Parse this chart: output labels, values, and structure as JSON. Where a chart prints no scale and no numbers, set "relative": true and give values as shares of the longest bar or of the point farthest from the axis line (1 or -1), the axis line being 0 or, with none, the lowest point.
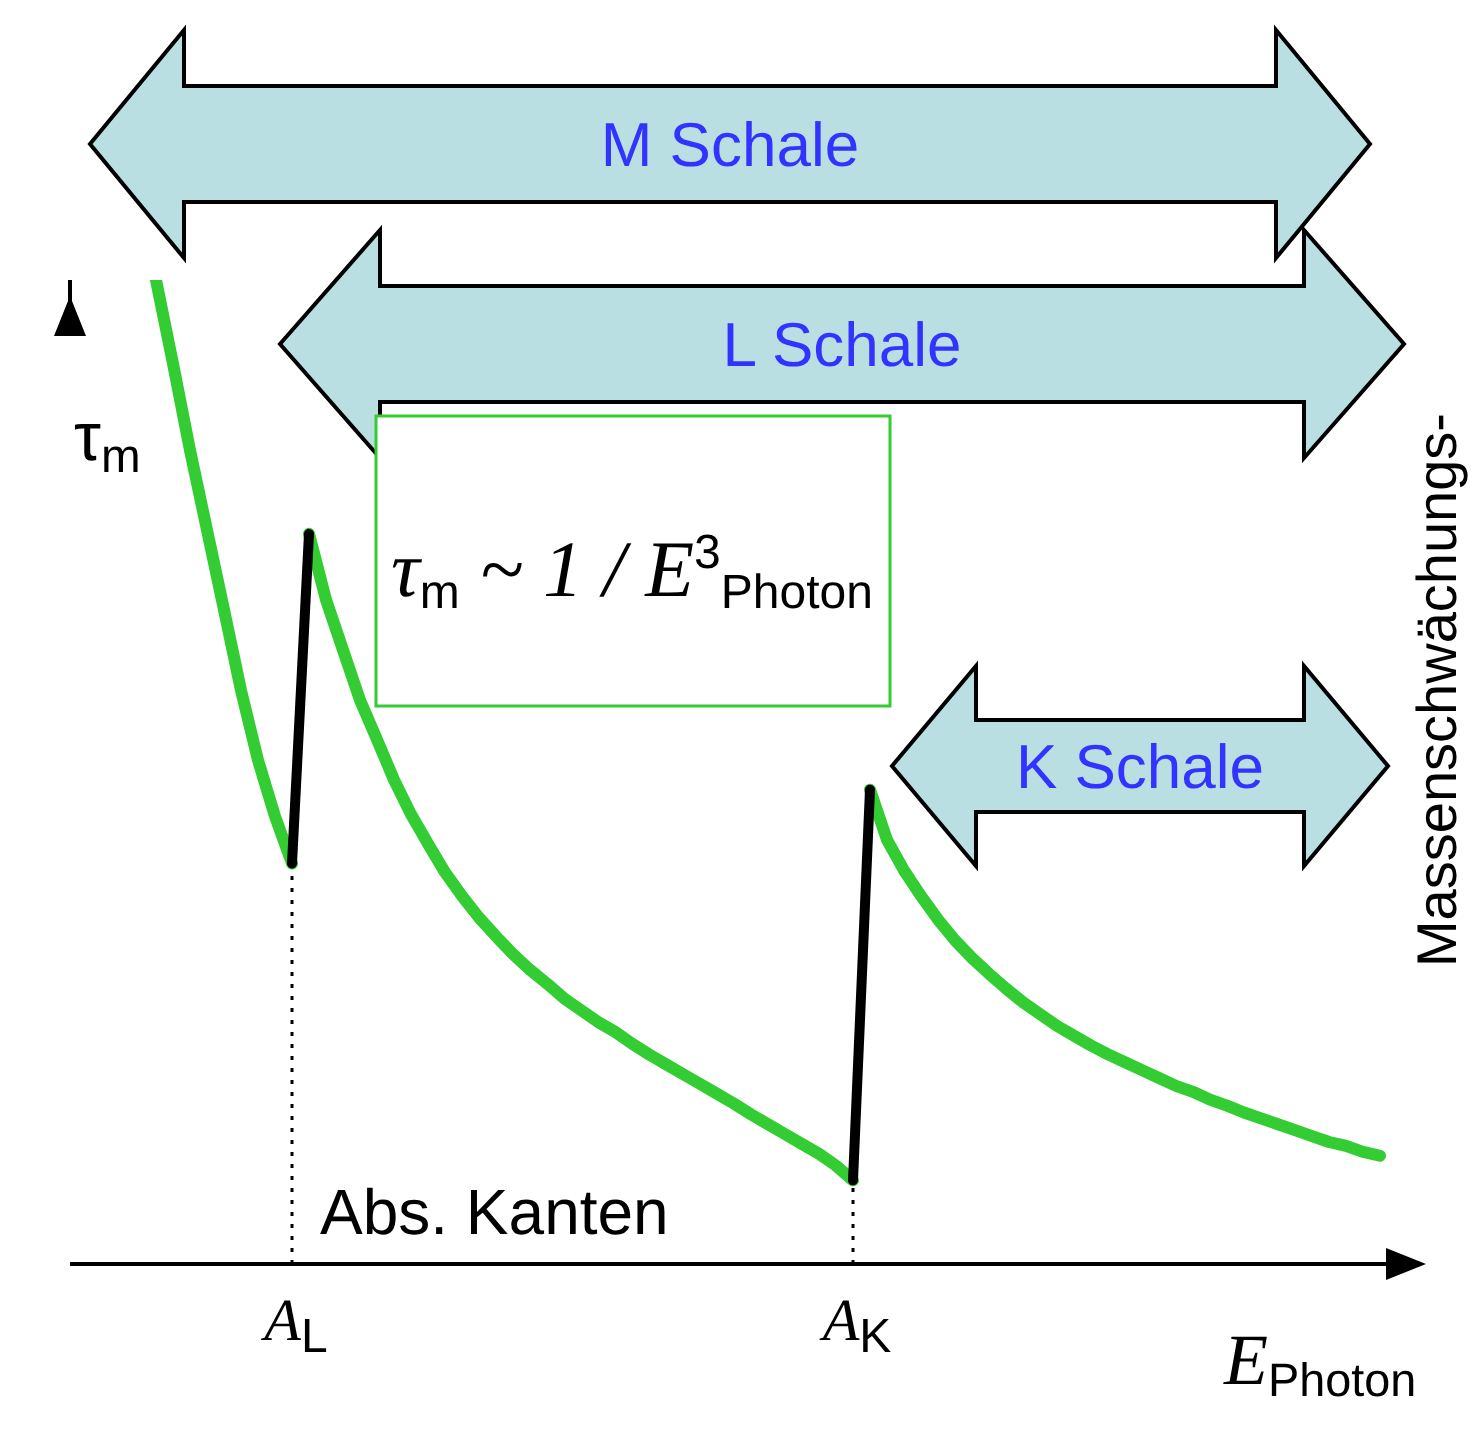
{
  "chart_data": {
    "type": "line",
    "relative": true,
    "xlabel": "E$_{Photon}$",
    "ylabel": "τ$_{m}$",
    "categories": [
      null,
      null,
      null,
      null,
      null,
      null,
      null,
      null,
      "A$_{L}$",
      null,
      null,
      null,
      null,
      null,
      null,
      null,
      null,
      null,
      null,
      null,
      null,
      null,
      null,
      null,
      null,
      null,
      null,
      null,
      null,
      null,
      null,
      null,
      null,
      null,
      null,
      null,
      null,
      null,
      null,
      null,
      null,
      "A$_{K}$",
      null,
      null,
      null,
      null,
      null,
      null,
      null,
      null,
      null,
      null,
      null,
      null,
      null,
      null,
      null,
      null,
      null,
      null,
      null,
      null,
      null,
      null,
      null,
      null,
      null,
      null,
      null,
      null,
      null,
      null,
      null
    ],
    "series": [
      {
        "color": "#33cc33",
        "values": [
          1,
          0.915,
          0.827,
          0.746,
          0.665,
          0.583,
          0.512,
          0.455,
          0.407,
          null,
          null,
          null,
          null,
          null,
          null,
          null,
          null,
          null,
          null,
          null,
          null,
          null,
          null,
          null,
          null,
          null,
          null,
          null,
          null,
          null,
          null,
          null,
          null,
          null,
          null,
          null,
          null,
          null,
          null,
          null,
          null,
          null,
          null,
          null,
          null,
          null,
          null,
          null,
          null,
          null,
          null,
          null,
          null,
          null,
          null,
          null,
          null,
          null,
          null,
          null,
          null,
          null,
          null,
          null,
          null,
          null,
          null,
          null,
          null,
          null,
          null,
          null,
          null
        ]
      },
      {
        "color": "#33cc33",
        "values": [
          null,
          null,
          null,
          null,
          null,
          null,
          null,
          null,
          null,
          0.742,
          0.675,
          0.624,
          0.573,
          0.533,
          0.492,
          0.457,
          0.427,
          0.398,
          0.374,
          0.352,
          0.333,
          0.315,
          0.299,
          0.285,
          0.27,
          0.258,
          0.246,
          0.236,
          0.224,
          0.213,
          0.203,
          0.193,
          0.183,
          0.173,
          0.163,
          0.152,
          0.142,
          0.132,
          0.122,
          0.112,
          0.1,
          0.085,
          null,
          null,
          null,
          null,
          null,
          null,
          null,
          null,
          null,
          null,
          null,
          null,
          null,
          null,
          null,
          null,
          null,
          null,
          null,
          null,
          null,
          null,
          null,
          null,
          null,
          null,
          null,
          null,
          null,
          null,
          null
        ]
      },
      {
        "color": "#33cc33",
        "values": [
          null,
          null,
          null,
          null,
          null,
          null,
          null,
          null,
          null,
          null,
          null,
          null,
          null,
          null,
          null,
          null,
          null,
          null,
          null,
          null,
          null,
          null,
          null,
          null,
          null,
          null,
          null,
          null,
          null,
          null,
          null,
          null,
          null,
          null,
          null,
          null,
          null,
          null,
          null,
          null,
          null,
          null,
          0.482,
          0.431,
          0.4,
          0.374,
          0.35,
          0.329,
          0.311,
          0.295,
          0.28,
          0.266,
          0.254,
          0.242,
          0.232,
          0.222,
          0.213,
          0.205,
          0.197,
          0.189,
          0.181,
          0.175,
          0.167,
          0.161,
          0.154,
          0.148,
          0.142,
          0.136,
          0.13,
          0.124,
          0.12,
          0.114,
          0.11
        ]
      },
      {
        "color": "#000000",
        "values": [
          null,
          null,
          null,
          null,
          null,
          null,
          null,
          null,
          0.407,
          0.742,
          null,
          null,
          null,
          null,
          null,
          null,
          null,
          null,
          null,
          null,
          null,
          null,
          null,
          null,
          null,
          null,
          null,
          null,
          null,
          null,
          null,
          null,
          null,
          null,
          null,
          null,
          null,
          null,
          null,
          null,
          null,
          0.085,
          0.482,
          null,
          null,
          null,
          null,
          null,
          null,
          null,
          null,
          null,
          null,
          null,
          null,
          null,
          null,
          null,
          null,
          null,
          null,
          null,
          null,
          null,
          null,
          null,
          null,
          null,
          null,
          null,
          null,
          null,
          null
        ]
      }
    ],
    "ref_lines": [
      {
        "axis": "x",
        "value": "A$_{L}$",
        "line_style": "dotted",
        "color": "#000000"
      },
      {
        "axis": "x",
        "value": "A$_{K}$",
        "line_style": "dotted",
        "color": "#000000"
      }
    ],
    "annotations": [
      "M Schale",
      "L Schale",
      "K Schale",
      "τ$_{m}$ ~ 1 / E$^{3}$$_{Photon}$",
      "Abs. Kanten",
      "Massenschwächungs-"
    ],
    "marker": "none",
    "line_style": "solid",
    "grid": false,
    "legend": false
  }
}
